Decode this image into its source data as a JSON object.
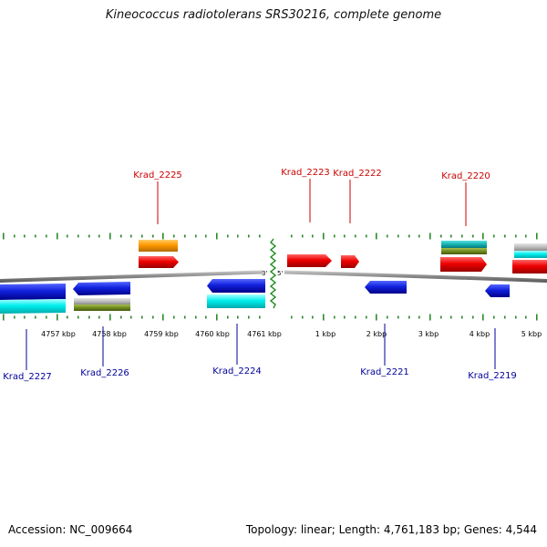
{
  "title": "Kineococcus radiotolerans SRS30216, complete genome",
  "accession": "Accession: NC_009664",
  "stats": "Topology: linear; Length: 4,761,183 bp; Genes: 4,544",
  "colors": {
    "label_upper": "#cc0000",
    "label_lower": "#000099",
    "tick": "#2a8a2a",
    "backbone": "#888888"
  },
  "ends": {
    "left": "3'",
    "right": "5'"
  },
  "ticks": [
    {
      "label": "4757 kbp"
    },
    {
      "label": "4758 kbp"
    },
    {
      "label": "4759 kbp"
    },
    {
      "label": "4760 kbp"
    },
    {
      "label": "4761 kbp"
    },
    {
      "label": "1 kbp"
    },
    {
      "label": "2 kbp"
    },
    {
      "label": "3 kbp"
    },
    {
      "label": "4 kbp"
    },
    {
      "label": "5 kbp"
    }
  ],
  "upper_labels": [
    {
      "name": "Krad_2225"
    },
    {
      "name": "Krad_2223"
    },
    {
      "name": "Krad_2222"
    },
    {
      "name": "Krad_2220"
    }
  ],
  "lower_labels": [
    {
      "name": "Krad_2227"
    },
    {
      "name": "Krad_2226"
    },
    {
      "name": "Krad_2224"
    },
    {
      "name": "Krad_2221"
    },
    {
      "name": "Krad_2219"
    }
  ]
}
